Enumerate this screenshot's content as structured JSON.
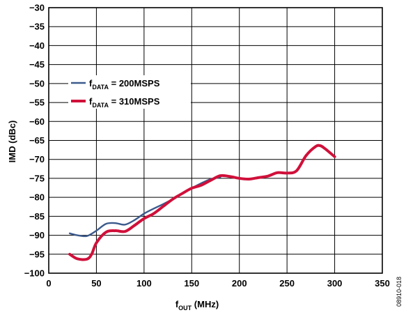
{
  "chart_data": {
    "type": "line",
    "xlabel": {
      "main": "f",
      "sub": "OUT",
      "rest": " (MHz)"
    },
    "ylabel": "IMD (dBc)",
    "xlim": [
      0,
      350
    ],
    "ylim": [
      -100,
      -30
    ],
    "x_ticks": [
      "0",
      "50",
      "100",
      "150",
      "200",
      "250",
      "300",
      "350"
    ],
    "y_ticks": [
      "−30",
      "−35",
      "−40",
      "−45",
      "−50",
      "−55",
      "−60",
      "−65",
      "−70",
      "−75",
      "−80",
      "−85",
      "−90",
      "−95",
      "−100"
    ],
    "grid": true,
    "legend_position": "upper-left",
    "figure_id": "08910-018",
    "series": [
      {
        "name": {
          "main": "f",
          "sub": "DATA",
          "rest": " = 200MSPS"
        },
        "color": "#3b5a8c",
        "x": [
          22,
          30,
          40,
          50,
          60,
          70,
          80,
          90,
          100,
          110,
          120,
          130,
          140,
          150,
          160,
          170,
          180
        ],
        "y": [
          -89.5,
          -90.0,
          -90.2,
          -88.8,
          -87.0,
          -86.8,
          -87.2,
          -86.0,
          -84.3,
          -83.0,
          -81.8,
          -80.5,
          -79.0,
          -77.6,
          -76.3,
          -75.2,
          -74.7
        ]
      },
      {
        "name": {
          "main": "f",
          "sub": "DATA",
          "rest": " = 310MSPS"
        },
        "color": "#d0103a",
        "x": [
          22,
          30,
          40,
          45,
          50,
          60,
          70,
          80,
          90,
          100,
          110,
          120,
          130,
          140,
          150,
          160,
          170,
          180,
          190,
          200,
          210,
          220,
          230,
          240,
          250,
          260,
          270,
          280,
          285,
          290,
          300
        ],
        "y": [
          -95.0,
          -96.2,
          -96.3,
          -95.0,
          -92.0,
          -89.2,
          -88.8,
          -89.0,
          -87.4,
          -85.6,
          -84.3,
          -82.4,
          -80.5,
          -79.0,
          -77.6,
          -76.8,
          -75.5,
          -74.3,
          -74.5,
          -75.0,
          -75.2,
          -74.8,
          -74.4,
          -73.5,
          -73.6,
          -73.0,
          -69.0,
          -66.6,
          -66.4,
          -67.2,
          -69.3
        ]
      }
    ]
  }
}
